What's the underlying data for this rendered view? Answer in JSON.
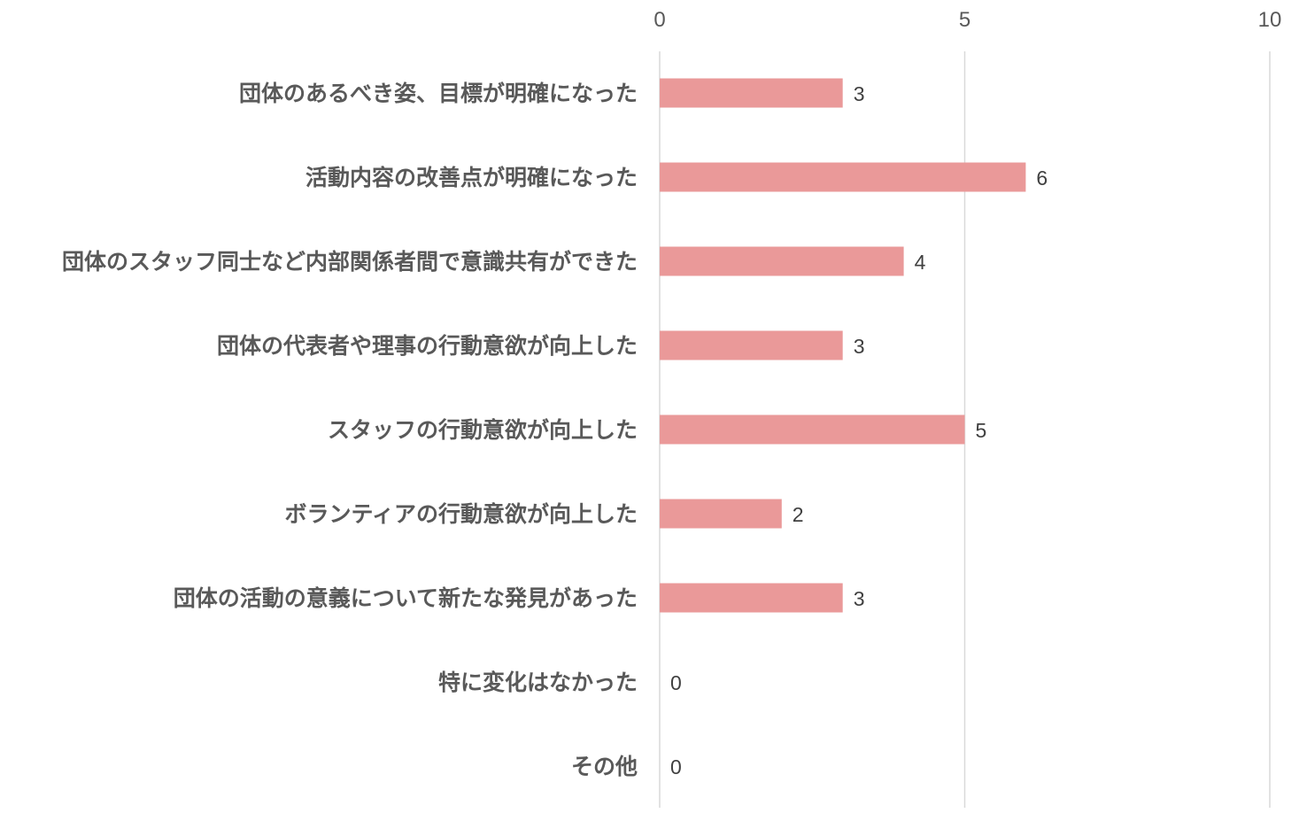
{
  "chart_data": {
    "type": "bar",
    "orientation": "horizontal",
    "categories": [
      "団体のあるべき姿、目標が明確になった",
      "活動内容の改善点が明確になった",
      "団体のスタッフ同士など内部関係者間で意識共有ができた",
      "団体の代表者や理事の行動意欲が向上した",
      "スタッフの行動意欲が向上した",
      "ボランティアの行動意欲が向上した",
      "団体の活動の意義について新たな発見があった",
      "特に変化はなかった",
      "その他"
    ],
    "values": [
      3,
      6,
      4,
      3,
      5,
      2,
      3,
      0,
      0
    ],
    "xlim": [
      0,
      10
    ],
    "x_ticks": [
      0,
      5,
      10
    ],
    "x_axis_position": "top",
    "grid": true,
    "data_labels": true,
    "bar_color": "#ea9999",
    "title": "",
    "xlabel": "",
    "ylabel": ""
  }
}
